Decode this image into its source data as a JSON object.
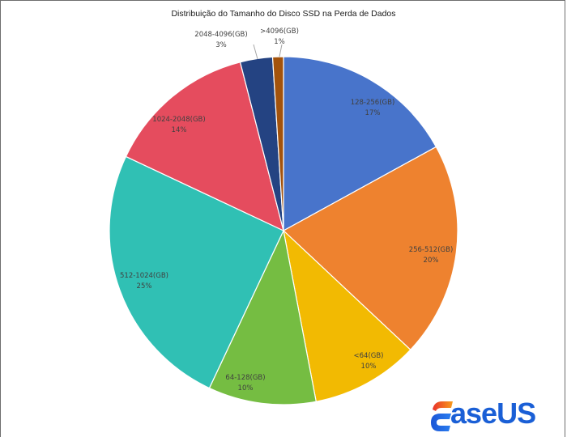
{
  "chart_data": {
    "type": "pie",
    "title": "Distribuição do Tamanho do Disco SSD na Perda de Dados",
    "start_angle_deg": 0,
    "direction": "clockwise",
    "slices": [
      {
        "label": "128-256(GB)",
        "value": 17,
        "pct_label": "17%",
        "color": "#4874CB"
      },
      {
        "label": "256-512(GB)",
        "value": 20,
        "pct_label": "20%",
        "color": "#EE822F"
      },
      {
        "label": "<64(GB)",
        "value": 10,
        "pct_label": "10%",
        "color": "#F2BA02"
      },
      {
        "label": "64-128(GB)",
        "value": 10,
        "pct_label": "10%",
        "color": "#75BD42"
      },
      {
        "label": "512-1024(GB)",
        "value": 25,
        "pct_label": "25%",
        "color": "#30C0B4"
      },
      {
        "label": "1024-2048(GB)",
        "value": 14,
        "pct_label": "14%",
        "color": "#E54C5E"
      },
      {
        "label": "2048-4096(GB)",
        "value": 3,
        "pct_label": "3%",
        "color": "#244382"
      },
      {
        "label": ">4096(GB)",
        "value": 1,
        "pct_label": "1%",
        "color": "#A3530C"
      }
    ],
    "legend": "none",
    "data_labels": "category name and percentage"
  },
  "watermark": {
    "brand": "EaseUS",
    "text": "aseUS"
  }
}
